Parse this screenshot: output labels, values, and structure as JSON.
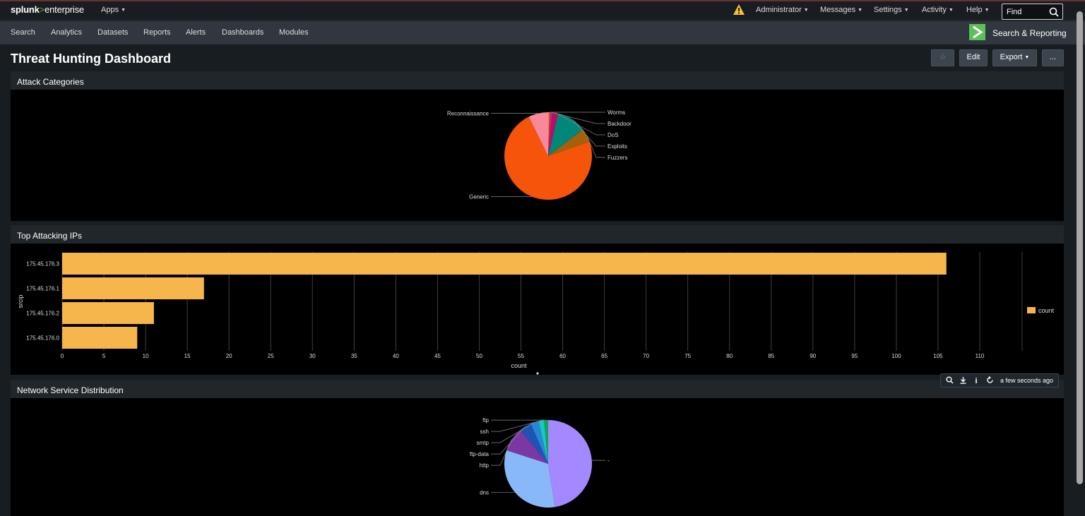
{
  "topbar": {
    "logo_brand": "splunk",
    "logo_sep": ">",
    "logo_product": "enterprise",
    "apps": "Apps",
    "menus": [
      "Administrator",
      "Messages",
      "Settings",
      "Activity",
      "Help"
    ],
    "find_placeholder": "Find",
    "warning_color": "#f8be34"
  },
  "appbar": {
    "nav": [
      "Search",
      "Analytics",
      "Datasets",
      "Reports",
      "Alerts",
      "Dashboards",
      "Modules"
    ],
    "app_name": "Search & Reporting",
    "app_badge_glyph": ">"
  },
  "dashboard": {
    "title": "Threat Hunting Dashboard",
    "buttons": {
      "star": "☆",
      "edit": "Edit",
      "export": "Export",
      "more": "..."
    }
  },
  "panels": {
    "attack": {
      "title": "Attack Categories"
    },
    "ips": {
      "title": "Top Attacking IPs",
      "ylabel": "srcip",
      "xlabel": "count",
      "legend": "count"
    },
    "network": {
      "title": "Network Service Distribution"
    }
  },
  "toolbar": {
    "time": "a few seconds ago"
  },
  "chart_data": [
    {
      "type": "pie",
      "title": "Attack Categories",
      "slices": [
        {
          "label": "Worms",
          "value": 0.5,
          "color": "#c8a800"
        },
        {
          "label": "Backdoor",
          "value": 1,
          "color": "#e0187a"
        },
        {
          "label": "DoS",
          "value": 2.2,
          "color": "#b0126a"
        },
        {
          "label": "Exploits",
          "value": 11,
          "color": "#00877a"
        },
        {
          "label": "Fuzzers",
          "value": 5,
          "color": "#a85f0a"
        },
        {
          "label": "Generic",
          "value": 73,
          "color": "#f7540b"
        },
        {
          "label": "Reconnaissance",
          "value": 7.3,
          "color": "#f7899b"
        }
      ]
    },
    {
      "type": "bar",
      "orientation": "horizontal",
      "title": "Top Attacking IPs",
      "categories": [
        "175.45.176.3",
        "175.45.176.1",
        "175.45.176.2",
        "175.45.176.0"
      ],
      "series": [
        {
          "name": "count",
          "values": [
            106,
            17,
            11,
            9
          ],
          "color": "#f6b64b"
        }
      ],
      "xlabel": "count",
      "ylabel": "srcip",
      "xlim": [
        0,
        110
      ],
      "xticks": [
        0,
        5,
        10,
        15,
        20,
        25,
        30,
        35,
        40,
        45,
        50,
        55,
        60,
        65,
        70,
        75,
        80,
        85,
        90,
        95,
        100,
        105,
        110
      ],
      "grid": true,
      "legend": "right"
    },
    {
      "type": "pie",
      "title": "Network Service Distribution",
      "slices": [
        {
          "label": "-",
          "value": 47.5,
          "color": "#a388ff"
        },
        {
          "label": "dns",
          "value": 32.5,
          "color": "#89b8f8"
        },
        {
          "label": "http",
          "value": 9,
          "color": "#7b37a3"
        },
        {
          "label": "ftp-data",
          "value": 4.5,
          "color": "#1f54b5"
        },
        {
          "label": "smtp",
          "value": 3,
          "color": "#2986d6"
        },
        {
          "label": "ssh",
          "value": 2,
          "color": "#17c9c4"
        },
        {
          "label": "ftp",
          "value": 1.5,
          "color": "#15a35a"
        }
      ]
    }
  ]
}
